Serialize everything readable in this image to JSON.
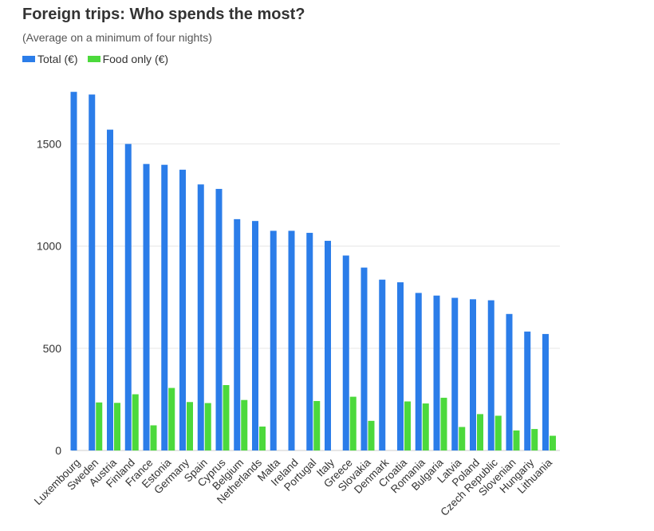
{
  "chart_data": {
    "type": "bar",
    "title": "Foreign trips: Who spends the most?",
    "subtitle": "(Average on a minimum of four nights)",
    "xlabel": "",
    "ylabel": "",
    "ylim": [
      0,
      1800
    ],
    "yticks": [
      0,
      500,
      1000,
      1500
    ],
    "grid": true,
    "legend_position": "top-left",
    "categories": [
      "Luxembourg",
      "Sweden",
      "Austria",
      "Finland",
      "France",
      "Estonia",
      "Germany",
      "Spain",
      "Cyprus",
      "Belgium",
      "Netherlands",
      "Malta",
      "Ireland",
      "Portugal",
      "Italy",
      "Greece",
      "Slovakia",
      "Denmark",
      "Croatia",
      "Romania",
      "Bulgaria",
      "Latvia",
      "Poland",
      "Czech Republic",
      "Slovenian",
      "Hungariy",
      "Lithuania"
    ],
    "series": [
      {
        "name": "Total (€)",
        "color": "#2b7de9",
        "values": [
          1755,
          1742,
          1570,
          1500,
          1402,
          1398,
          1374,
          1302,
          1280,
          1132,
          1123,
          1075,
          1075,
          1065,
          1026,
          954,
          895,
          836,
          823,
          771,
          758,
          747,
          740,
          735,
          668,
          582,
          570
        ]
      },
      {
        "name": "Food only (€)",
        "color": "#4cd93c",
        "values": [
          null,
          235,
          233,
          275,
          123,
          306,
          237,
          232,
          320,
          247,
          117,
          null,
          null,
          242,
          null,
          263,
          145,
          null,
          240,
          230,
          258,
          115,
          178,
          170,
          98,
          105,
          72
        ]
      }
    ]
  }
}
